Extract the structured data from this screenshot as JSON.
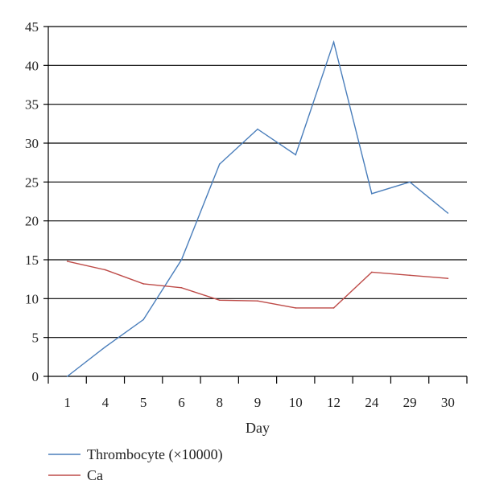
{
  "chart_data": {
    "type": "line",
    "categories": [
      "1",
      "4",
      "5",
      "6",
      "8",
      "9",
      "10",
      "12",
      "24",
      "29",
      "30"
    ],
    "xlabel": "Day",
    "ylabel": "",
    "ylim": [
      0,
      45
    ],
    "yticks": [
      0,
      5,
      10,
      15,
      20,
      25,
      30,
      35,
      40,
      45
    ],
    "grid": "horizontal",
    "legend_position": "bottom-left",
    "series": [
      {
        "name": "Thrombocyte (×10000)",
        "color": "#4a7ebb",
        "values": [
          0,
          3.8,
          7.3,
          15.0,
          27.3,
          31.8,
          28.5,
          43.0,
          23.5,
          25.0,
          21.0
        ]
      },
      {
        "name": "Ca",
        "color": "#be4b48",
        "values": [
          14.8,
          13.7,
          11.9,
          11.4,
          9.8,
          9.7,
          8.8,
          8.8,
          13.4,
          13.0,
          12.6
        ]
      }
    ]
  }
}
